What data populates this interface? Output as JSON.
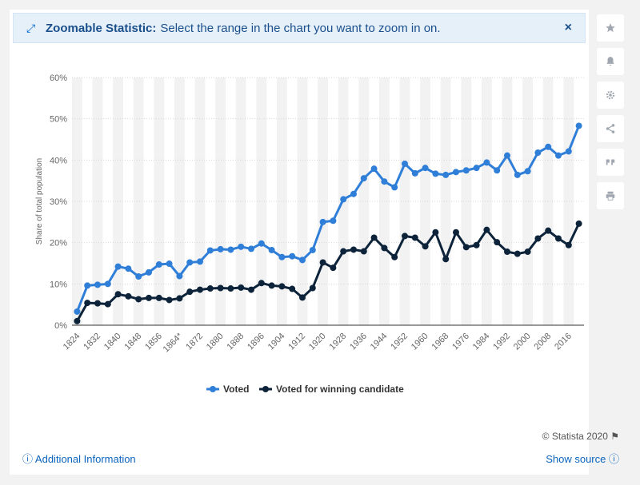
{
  "banner": {
    "title": "Zoomable Statistic:",
    "message": "Select the range in the chart you want to zoom in on.",
    "close": "×"
  },
  "sidebar": [
    "star-icon",
    "bell-icon",
    "gear-icon",
    "share-icon",
    "quote-icon",
    "print-icon"
  ],
  "footer": {
    "copyright": "© Statista 2020",
    "info": "Additional Information",
    "source": "Show source"
  },
  "chart_data": {
    "type": "line",
    "xlabel": "",
    "ylabel": "Share of total population",
    "ylim": [
      0,
      60
    ],
    "yticks": [
      "0%",
      "10%",
      "20%",
      "30%",
      "40%",
      "50%",
      "60%"
    ],
    "x_tick_labels": [
      "1824",
      "1832",
      "1840",
      "1848",
      "1856",
      "1864*",
      "1872",
      "1880",
      "1888",
      "1896",
      "1904",
      "1912",
      "1920",
      "1928",
      "1936",
      "1944",
      "1952",
      "1960",
      "1968",
      "1976",
      "1984",
      "1992",
      "2000",
      "2008",
      "2016"
    ],
    "categories": [
      "1824",
      "1828",
      "1832",
      "1836",
      "1840",
      "1844",
      "1848",
      "1852",
      "1856",
      "1860",
      "1864*",
      "1868",
      "1872",
      "1876",
      "1880",
      "1884",
      "1888",
      "1892",
      "1896",
      "1900",
      "1904",
      "1908",
      "1912",
      "1916",
      "1920",
      "1924",
      "1928",
      "1932",
      "1936",
      "1940",
      "1944",
      "1948",
      "1952",
      "1956",
      "1960",
      "1964",
      "1968",
      "1972",
      "1976",
      "1980",
      "1984",
      "1988",
      "1992",
      "1996",
      "2000",
      "2004",
      "2008",
      "2012",
      "2016",
      "2020"
    ],
    "series": [
      {
        "name": "Voted",
        "color": "#2f7ed8",
        "values": [
          3.3,
          9.6,
          9.8,
          10.0,
          14.2,
          13.7,
          11.8,
          12.8,
          14.7,
          14.9,
          11.9,
          15.2,
          15.4,
          18.1,
          18.4,
          18.3,
          19.0,
          18.5,
          19.8,
          18.2,
          16.5,
          16.7,
          15.8,
          18.2,
          25.0,
          25.3,
          30.5,
          31.8,
          35.6,
          37.9,
          34.8,
          33.4,
          39.1,
          36.8,
          38.1,
          36.7,
          36.4,
          37.1,
          37.5,
          38.1,
          39.4,
          37.5,
          41.1,
          36.4,
          37.3,
          41.8,
          43.2,
          41.1,
          42.1,
          48.3
        ]
      },
      {
        "name": "Voted for winning candidate",
        "color": "#0d233a",
        "values": [
          1.0,
          5.4,
          5.3,
          5.1,
          7.5,
          7.0,
          6.3,
          6.6,
          6.6,
          6.1,
          6.5,
          8.1,
          8.6,
          8.9,
          9.0,
          8.9,
          9.1,
          8.6,
          10.2,
          9.6,
          9.4,
          8.8,
          6.7,
          9.0,
          15.2,
          13.9,
          17.9,
          18.3,
          17.9,
          21.2,
          18.7,
          16.5,
          21.6,
          21.2,
          19.1,
          22.5,
          16.0,
          22.5,
          18.9,
          19.4,
          23.1,
          20.1,
          17.8,
          17.3,
          17.8,
          21.0,
          22.9,
          21.0,
          19.4,
          24.6
        ]
      }
    ],
    "legend_position": "bottom",
    "grid": true
  }
}
